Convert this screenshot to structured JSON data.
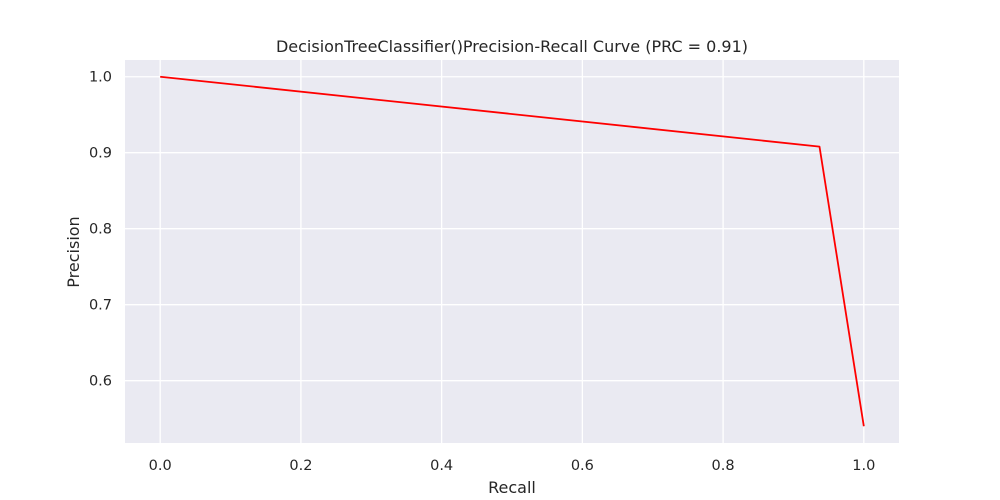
{
  "chart_data": {
    "type": "line",
    "title": "DecisionTreeClassifier()Precision-Recall Curve (PRC = 0.91)",
    "xlabel": "Recall",
    "ylabel": "Precision",
    "xlim": [
      -0.05,
      1.05
    ],
    "ylim": [
      0.518,
      1.022
    ],
    "xticks": [
      0.0,
      0.2,
      0.4,
      0.6,
      0.8,
      1.0
    ],
    "xtick_labels": [
      "0.0",
      "0.2",
      "0.4",
      "0.6",
      "0.8",
      "1.0"
    ],
    "yticks": [
      0.6,
      0.7,
      0.8,
      0.9,
      1.0
    ],
    "ytick_labels": [
      "0.6",
      "0.7",
      "0.8",
      "0.9",
      "1.0"
    ],
    "grid": true,
    "series": [
      {
        "color": "#ff0000",
        "x": [
          0.0,
          0.937,
          1.0
        ],
        "y": [
          1.0,
          0.908,
          0.54
        ]
      }
    ],
    "colors": {
      "plot_background": "#eaeaf2",
      "grid": "#ffffff",
      "line": "#ff0000"
    }
  }
}
